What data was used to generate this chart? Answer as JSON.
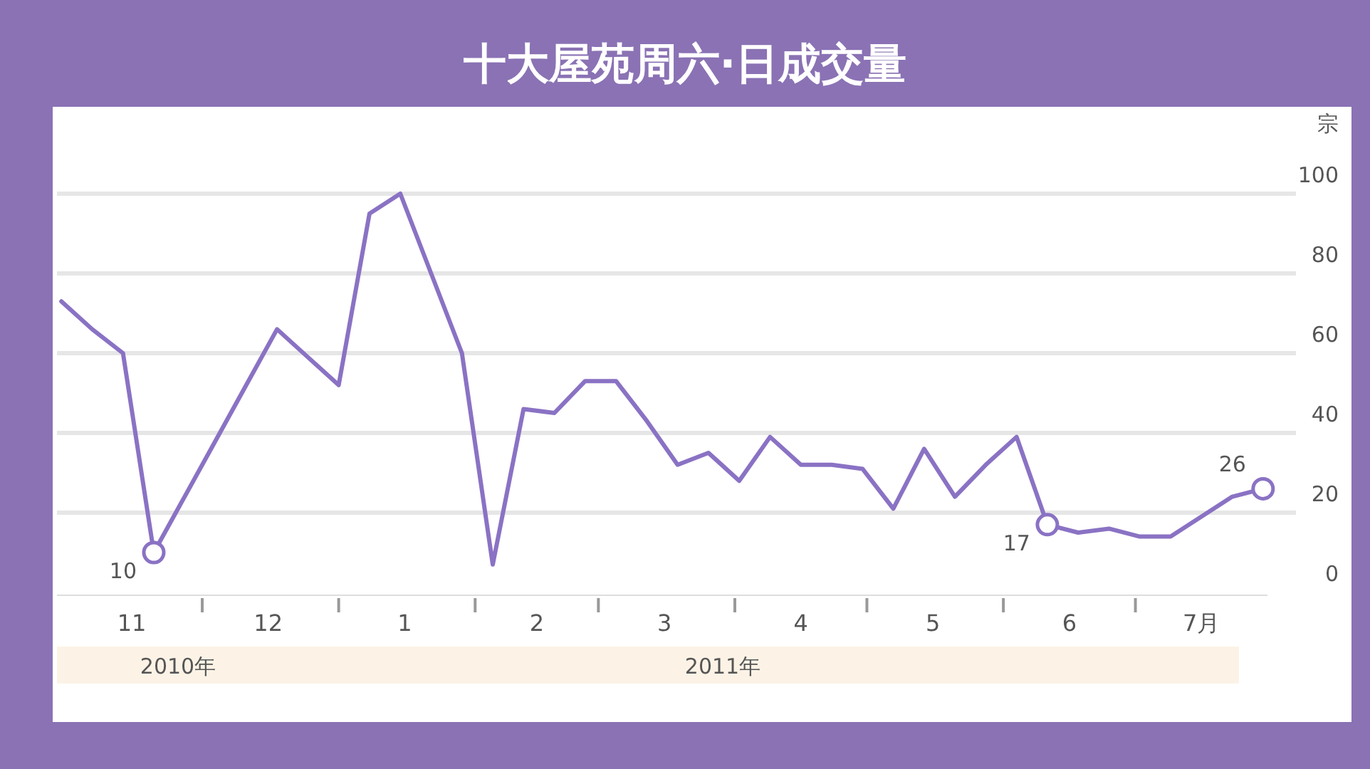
{
  "chart_data": {
    "type": "line",
    "title": "十大屋苑周六·日成交量",
    "ylabel": "宗",
    "x": [
      "2010-10-30",
      "2010-11-06",
      "2010-11-13",
      "2010-11-20",
      "2010-11-27",
      "2010-12-04",
      "2010-12-11",
      "2010-12-18",
      "2010-12-25",
      "2011-01-01",
      "2011-01-08",
      "2011-01-15",
      "2011-01-22",
      "2011-01-29",
      "2011-02-05",
      "2011-02-12",
      "2011-02-19",
      "2011-02-26",
      "2011-03-05",
      "2011-03-12",
      "2011-03-19",
      "2011-03-26",
      "2011-04-02",
      "2011-04-09",
      "2011-04-16",
      "2011-04-23",
      "2011-04-30",
      "2011-05-07",
      "2011-05-14",
      "2011-05-21",
      "2011-05-28",
      "2011-06-04",
      "2011-06-11",
      "2011-06-18",
      "2011-06-25",
      "2011-07-02",
      "2011-07-09",
      "2011-07-16",
      "2011-07-23",
      "2011-07-30"
    ],
    "series": [
      {
        "color": "#8a72c4",
        "values": [
          73,
          66,
          60,
          10,
          24,
          38,
          52,
          66,
          59,
          52,
          95,
          100,
          80,
          60,
          7,
          46,
          45,
          53,
          53,
          43,
          32,
          35,
          28,
          39,
          32,
          32,
          31,
          21,
          36,
          24,
          32,
          39,
          17,
          15,
          16,
          14,
          14,
          19,
          24,
          26
        ],
        "value_labels": [
          null,
          null,
          null,
          "10",
          null,
          null,
          null,
          null,
          null,
          null,
          null,
          null,
          null,
          null,
          null,
          null,
          null,
          null,
          null,
          null,
          null,
          null,
          null,
          null,
          null,
          null,
          null,
          null,
          null,
          null,
          null,
          null,
          "17",
          null,
          null,
          null,
          null,
          null,
          null,
          "26"
        ]
      }
    ],
    "xlim": [
      "2010-10-29",
      "2011-07-31"
    ],
    "xticks": [
      {
        "value": "2010-11-15",
        "label": "11"
      },
      {
        "value": "2010-12-01",
        "label": null
      },
      {
        "value": "2010-12-16",
        "label": "12"
      },
      {
        "value": "2011-01-01",
        "label": null
      },
      {
        "value": "2011-01-16",
        "label": "1"
      },
      {
        "value": "2011-02-01",
        "label": null
      },
      {
        "value": "2011-02-15",
        "label": "2"
      },
      {
        "value": "2011-03-01",
        "label": null
      },
      {
        "value": "2011-03-16",
        "label": "3"
      },
      {
        "value": "2011-04-01",
        "label": null
      },
      {
        "value": "2011-04-16",
        "label": "4"
      },
      {
        "value": "2011-05-01",
        "label": null
      },
      {
        "value": "2011-05-16",
        "label": "5"
      },
      {
        "value": "2011-06-01",
        "label": null
      },
      {
        "value": "2011-06-16",
        "label": "6"
      },
      {
        "value": "2011-07-01",
        "label": null
      },
      {
        "value": "2011-07-16",
        "label": "7月"
      }
    ],
    "ylim": [
      0,
      100
    ],
    "yticks": [
      0,
      20,
      40,
      60,
      80,
      100
    ],
    "grid": "y",
    "annotations": [
      "2010年",
      "2011年"
    ]
  }
}
